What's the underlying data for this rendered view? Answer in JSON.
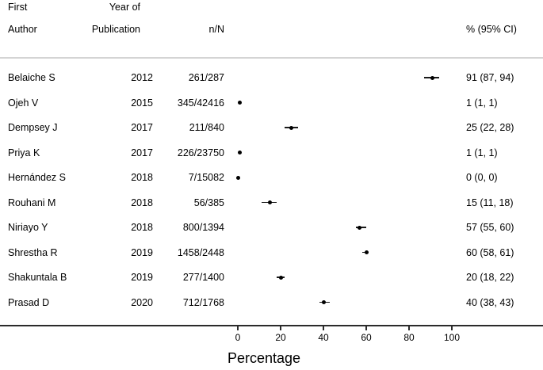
{
  "header": {
    "author_line1": "First",
    "author_line2": "Author",
    "year_line1": "Year of",
    "year_line2": "Publication",
    "nN": "n/N",
    "estimate": "% (95% CI)"
  },
  "chart_data": {
    "type": "scatter",
    "subtype": "forest-plot",
    "xlabel": "Percentage",
    "xlim": [
      0,
      100
    ],
    "x_ticks": [
      0,
      20,
      40,
      60,
      80,
      100
    ],
    "grid": false,
    "legend": "none",
    "columns": [
      "First Author",
      "Year of Publication",
      "n/N",
      "% (95% CI)"
    ],
    "studies": [
      {
        "author": "Belaiche S",
        "year": "2012",
        "nN": "261/287",
        "pct": 91,
        "lo": 87,
        "hi": 94,
        "estimate_label": "91 (87, 94)"
      },
      {
        "author": "Ojeh V",
        "year": "2015",
        "nN": "345/42416",
        "pct": 1,
        "lo": 1,
        "hi": 1,
        "estimate_label": "1 (1, 1)"
      },
      {
        "author": "Dempsey J",
        "year": "2017",
        "nN": "211/840",
        "pct": 25,
        "lo": 22,
        "hi": 28,
        "estimate_label": "25 (22, 28)"
      },
      {
        "author": "Priya K",
        "year": "2017",
        "nN": "226/23750",
        "pct": 1,
        "lo": 1,
        "hi": 1,
        "estimate_label": "1 (1, 1)"
      },
      {
        "author": "Hernández S",
        "year": "2018",
        "nN": "7/15082",
        "pct": 0,
        "lo": 0,
        "hi": 0,
        "estimate_label": "0 (0, 0)"
      },
      {
        "author": "Rouhani M",
        "year": "2018",
        "nN": "56/385",
        "pct": 15,
        "lo": 11,
        "hi": 18,
        "estimate_label": "15 (11, 18)"
      },
      {
        "author": "Niriayo Y",
        "year": "2018",
        "nN": "800/1394",
        "pct": 57,
        "lo": 55,
        "hi": 60,
        "estimate_label": "57 (55, 60)"
      },
      {
        "author": "Shrestha R",
        "year": "2019",
        "nN": "1458/2448",
        "pct": 60,
        "lo": 58,
        "hi": 61,
        "estimate_label": "60 (58, 61)"
      },
      {
        "author": "Shakuntala B",
        "year": "2019",
        "nN": "277/1400",
        "pct": 20,
        "lo": 18,
        "hi": 22,
        "estimate_label": "20 (18, 22)"
      },
      {
        "author": "Prasad D",
        "year": "2020",
        "nN": "712/1768",
        "pct": 40,
        "lo": 38,
        "hi": 43,
        "estimate_label": "40 (38, 43)"
      }
    ]
  },
  "colors": {
    "text": "#000000",
    "axis_line": "#2b2b2b",
    "header_separator": "#d4d4d4",
    "marker": "#000000"
  }
}
